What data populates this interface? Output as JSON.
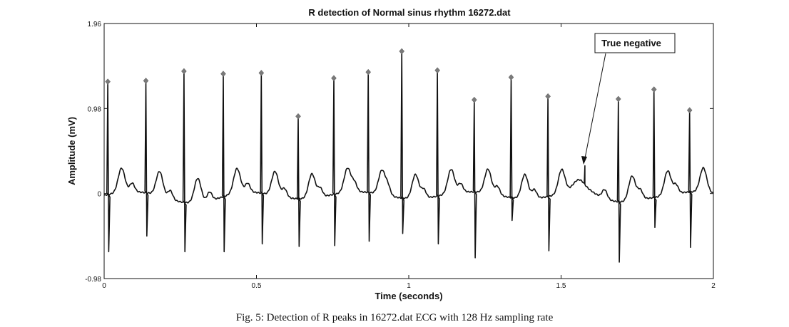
{
  "chart_data": {
    "type": "line",
    "title": "R detection of Normal sinus rhythm 16272.dat",
    "xlabel": "Time (seconds)",
    "ylabel": "Amplitude (mV)",
    "xlim": [
      0,
      2
    ],
    "ylim": [
      -0.98,
      1.96
    ],
    "xticks": [
      0,
      0.5,
      1,
      1.5,
      2
    ],
    "xtick_labels": [
      "0",
      "0.5",
      "1",
      "1.5",
      "2"
    ],
    "yticks": [
      -0.98,
      0,
      0.98,
      1.96
    ],
    "ytick_labels": [
      "-0.98",
      "0",
      "0.98",
      "1.96"
    ],
    "sampling_rate_hz": 128,
    "grid": false,
    "series": [
      {
        "kind": "ecg-trace",
        "color": "#111111",
        "beats": [
          {
            "t": 0.012,
            "r": 1.29,
            "s": -0.67
          },
          {
            "t": 0.137,
            "r": 1.3,
            "s": -0.49
          },
          {
            "t": 0.262,
            "r": 1.41,
            "s": -0.67
          },
          {
            "t": 0.391,
            "r": 1.38,
            "s": -0.67
          },
          {
            "t": 0.516,
            "r": 1.39,
            "s": -0.58
          },
          {
            "t": 0.637,
            "r": 0.89,
            "s": -0.61
          },
          {
            "t": 0.754,
            "r": 1.33,
            "s": -0.6
          },
          {
            "t": 0.867,
            "r": 1.4,
            "s": -0.55
          },
          {
            "t": 0.977,
            "r": 1.64,
            "s": -0.46
          },
          {
            "t": 1.094,
            "r": 1.42,
            "s": -0.58
          },
          {
            "t": 1.215,
            "r": 1.08,
            "s": -0.74
          },
          {
            "t": 1.336,
            "r": 1.34,
            "s": -0.31
          },
          {
            "t": 1.457,
            "r": 1.12,
            "s": -0.66
          },
          {
            "t": 1.688,
            "r": 1.09,
            "s": -0.79
          },
          {
            "t": 1.805,
            "r": 1.2,
            "s": -0.39
          },
          {
            "t": 1.922,
            "r": 0.96,
            "s": -0.62
          }
        ],
        "t_wave_height": 0.28,
        "noise_spike": {
          "t": 1.578,
          "value": 0.32
        }
      },
      {
        "kind": "r-peak-markers",
        "color": "#7a7a7a",
        "points": [
          {
            "t": 0.012,
            "v": 1.29
          },
          {
            "t": 0.137,
            "v": 1.3
          },
          {
            "t": 0.262,
            "v": 1.41
          },
          {
            "t": 0.391,
            "v": 1.38
          },
          {
            "t": 0.516,
            "v": 1.39
          },
          {
            "t": 0.637,
            "v": 0.89
          },
          {
            "t": 0.754,
            "v": 1.33
          },
          {
            "t": 0.867,
            "v": 1.4
          },
          {
            "t": 0.977,
            "v": 1.64
          },
          {
            "t": 1.094,
            "v": 1.42
          },
          {
            "t": 1.215,
            "v": 1.08
          },
          {
            "t": 1.336,
            "v": 1.34
          },
          {
            "t": 1.457,
            "v": 1.12
          },
          {
            "t": 1.688,
            "v": 1.09
          },
          {
            "t": 1.805,
            "v": 1.2
          },
          {
            "t": 1.922,
            "v": 0.96
          }
        ]
      }
    ],
    "annotations": [
      {
        "text": "True negative",
        "points_to": {
          "t": 1.578,
          "v": 0.32
        }
      }
    ]
  },
  "caption": "Fig. 5: Detection of R peaks in 16272.dat ECG with 128 Hz sampling rate"
}
